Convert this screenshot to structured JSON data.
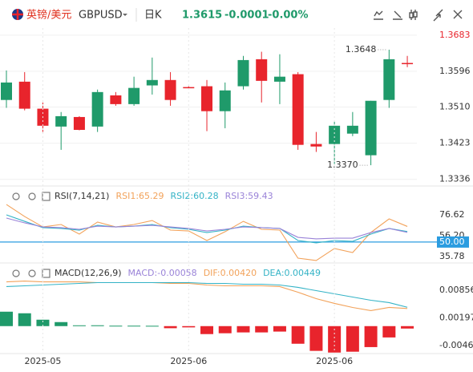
{
  "header": {
    "name": "英镑/美元",
    "symbol": "GBPUSD",
    "period": "日K",
    "price": "1.3615",
    "change": "-0.0001",
    "change_percent": "-0.00%"
  },
  "chart_data": [
    {
      "type": "candlestick",
      "categories": [
        null,
        null,
        "2025-05",
        null,
        null,
        null,
        null,
        null,
        null,
        null,
        "2025-06",
        null,
        null,
        null,
        null,
        null,
        null,
        null,
        "2025-06",
        null,
        null,
        null,
        null
      ],
      "open": [
        1.3527,
        1.3571,
        1.3506,
        1.3463,
        1.3486,
        1.3463,
        1.3538,
        1.3517,
        1.3562,
        1.3575,
        1.3558,
        1.356,
        1.35,
        1.356,
        1.3625,
        1.3571,
        1.3589,
        1.3421,
        1.3421,
        1.3446,
        1.3394,
        1.3527,
        1.3616
      ],
      "high": [
        1.3598,
        1.3594,
        1.3521,
        1.3498,
        1.3488,
        1.3552,
        1.3546,
        1.3583,
        1.3629,
        1.3594,
        1.356,
        1.3575,
        1.3569,
        1.3633,
        1.3643,
        1.3637,
        1.3594,
        1.345,
        1.3475,
        1.3498,
        1.3525,
        1.3648,
        1.3633
      ],
      "low": [
        1.3508,
        1.3502,
        1.345,
        1.3407,
        1.3454,
        1.345,
        1.3513,
        1.3513,
        1.354,
        1.3513,
        1.3555,
        1.3452,
        1.3459,
        1.3552,
        1.3521,
        1.3517,
        1.3407,
        1.3402,
        1.3373,
        1.344,
        1.337,
        1.3508,
        1.3606
      ],
      "close": [
        1.3569,
        1.3506,
        1.3465,
        1.3488,
        1.3455,
        1.3546,
        1.3517,
        1.3556,
        1.3575,
        1.3527,
        1.3556,
        1.35,
        1.355,
        1.3623,
        1.3573,
        1.3583,
        1.3419,
        1.3415,
        1.3465,
        1.3465,
        1.3525,
        1.3625,
        1.3615
      ],
      "up_color": "#1f9a6a",
      "down_color": "#e8242c",
      "ylim": [
        1.332,
        1.37
      ],
      "yticks": [
        1.3683,
        1.3596,
        {
          "value": 1.351,
          "label": "1.3510"
        },
        1.3423,
        1.3336
      ],
      "annotations": [
        {
          "index": 21,
          "value": 1.3648
        },
        {
          "index": 20,
          "value": {
            "value": 1.337,
            "label": "1.3370"
          }
        }
      ],
      "grid": true
    },
    {
      "type": "line",
      "title": "RSI(7,14,21)",
      "series": [
        {
          "name": "RSI1:65.29",
          "color": "#f2a25a",
          "values": [
            86.8,
            75.0,
            64.8,
            67.2,
            57.8,
            69.6,
            64.8,
            67.2,
            71.1,
            61.7,
            60.9,
            51.5,
            60.1,
            70.3,
            62.5,
            61.7,
            34.2,
            31.9,
            43.7,
            39.7,
            59.4,
            72.7,
            65.29
          ]
        },
        {
          "name": "RSI2:60.28",
          "color": "#34b3c6",
          "values": [
            76.6,
            70.3,
            64.1,
            63.3,
            61.7,
            66.4,
            64.8,
            65.6,
            67.2,
            64.1,
            62.5,
            59.3,
            61.7,
            65.6,
            64.1,
            63.3,
            51.5,
            49.2,
            51.5,
            50.7,
            57.8,
            63.3,
            60.28
          ]
        },
        {
          "name": "RSI3:59.43",
          "color": "#9a83d8",
          "values": [
            73.5,
            68.8,
            64.8,
            64.1,
            62.5,
            65.6,
            64.8,
            65.6,
            66.4,
            64.8,
            63.3,
            60.9,
            62.5,
            64.8,
            64.1,
            63.3,
            54.6,
            53.1,
            53.8,
            53.8,
            59.3,
            63.3,
            59.43
          ]
        }
      ],
      "ylim": [
        29.5,
        89.2
      ],
      "yticks": [
        76.62,
        {
          "value": 56.2,
          "label": "56.20"
        },
        {
          "value": 50,
          "label": "50.00"
        },
        35.78
      ],
      "reference_line": {
        "value": 50,
        "color": "#2b9ce0"
      }
    },
    {
      "type": "combo",
      "title": "MACD(12,26,9)",
      "series": [
        {
          "name": "MACD:-0.00058",
          "type": "bar",
          "color": "#9a83d8",
          "up_color": "#1f9a6a",
          "down_color": "#e8242c",
          "values": [
            0.00344,
            0.00306,
            0.00153,
            0.00096,
            0.00019,
            0.0002,
            0.0001,
            0.0001,
            8e-05,
            -0.0005,
            -0.0003,
            -0.0019,
            -0.0017,
            -0.0015,
            -0.0015,
            -0.0013,
            -0.0042,
            -0.0059,
            -0.0063,
            -0.0061,
            -0.005,
            -0.0027,
            -0.00058
          ]
        },
        {
          "name": "DIF:0.00420",
          "type": "line",
          "color": "#f2a25a",
          "values": [
            0.01056,
            0.01075,
            0.01056,
            0.01056,
            0.01056,
            0.01037,
            0.01037,
            0.01037,
            0.01037,
            0.01018,
            0.01018,
            0.0098,
            0.00961,
            0.00961,
            0.00961,
            0.00942,
            0.00808,
            0.00655,
            0.00541,
            0.00445,
            0.00369,
            0.00445,
            0.0042
          ]
        },
        {
          "name": "DEA:0.00449",
          "type": "line",
          "color": "#34b3c6",
          "values": [
            0.00942,
            0.00961,
            0.0098,
            0.00999,
            0.01018,
            0.01037,
            0.01037,
            0.01037,
            0.01037,
            0.01037,
            0.01037,
            0.01018,
            0.01018,
            0.00999,
            0.00999,
            0.0098,
            0.00923,
            0.00846,
            0.0077,
            0.00693,
            0.00617,
            0.0056,
            0.00449
          ]
        }
      ],
      "ylim": [
        -0.00635,
        0.01085
      ],
      "yticks": [
        0.00856,
        0.00197,
        -0.00463
      ]
    }
  ]
}
